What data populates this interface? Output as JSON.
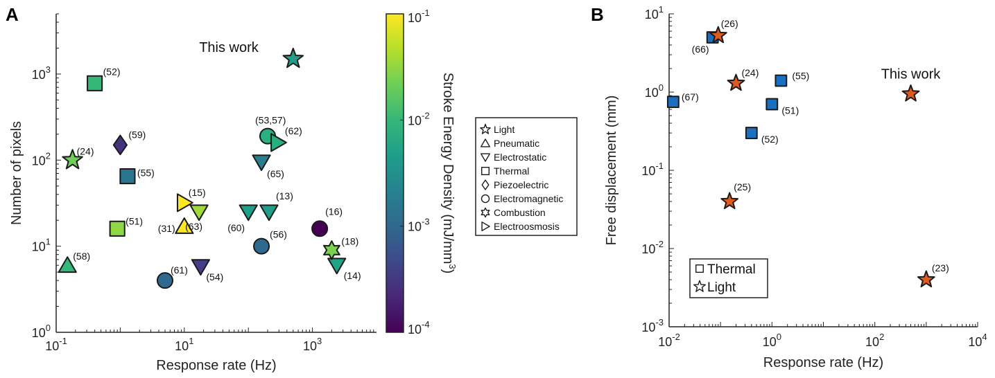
{
  "chart_data": [
    {
      "type": "scatter",
      "panel": "A",
      "xlabel": "Response rate (Hz)",
      "ylabel": "Number of pixels",
      "xscale": "log",
      "yscale": "log",
      "xlim": [
        0.1,
        10000
      ],
      "ylim": [
        1,
        5000
      ],
      "xticks": [
        {
          "v": 0.1,
          "b": "10",
          "e": "-1"
        },
        {
          "v": 10,
          "b": "10",
          "e": "1"
        },
        {
          "v": 1000,
          "b": "10",
          "e": "3"
        }
      ],
      "yticks": [
        {
          "v": 1,
          "b": "10",
          "e": "0"
        },
        {
          "v": 10,
          "b": "10",
          "e": "1"
        },
        {
          "v": 100,
          "b": "10",
          "e": "2"
        },
        {
          "v": 1000,
          "b": "10",
          "e": "3"
        }
      ],
      "colorbar": {
        "label": "Stroke Energy Density (mJ/mm",
        "label_sup": "3",
        "label_end": ")",
        "scale": "log",
        "range": [
          0.0001,
          0.1
        ],
        "ticks": [
          {
            "v": 0.1,
            "b": "10",
            "e": "-1"
          },
          {
            "v": 0.01,
            "b": "10",
            "e": "-2"
          },
          {
            "v": 0.001,
            "b": "10",
            "e": "-3"
          },
          {
            "v": 0.0001,
            "b": "10",
            "e": "-4"
          }
        ],
        "colormap": [
          "#440154",
          "#482878",
          "#3e4989",
          "#31688e",
          "#26828e",
          "#1f9e89",
          "#35b779",
          "#6ece58",
          "#b5de2b",
          "#fde725"
        ]
      },
      "legend": {
        "placement": "right",
        "entries": [
          {
            "label": "Light",
            "marker": "star"
          },
          {
            "label": "Pneumatic",
            "marker": "triangle-up"
          },
          {
            "label": "Electrostatic",
            "marker": "triangle-down"
          },
          {
            "label": "Thermal",
            "marker": "square"
          },
          {
            "label": "Piezoelectric",
            "marker": "diamond"
          },
          {
            "label": "Electromagnetic",
            "marker": "circle"
          },
          {
            "label": "Combustion",
            "marker": "hexagram"
          },
          {
            "label": "Electroosmosis",
            "marker": "triangle-right"
          }
        ]
      },
      "annotation": "This work",
      "points": [
        {
          "x": 0.18,
          "y": 100,
          "marker": "star",
          "color": "#6ece58",
          "label": "(24)"
        },
        {
          "x": 500,
          "y": 1500,
          "marker": "star",
          "color": "#1f9e89",
          "label": ""
        },
        {
          "x": 0.15,
          "y": 6,
          "marker": "triangle-up",
          "color": "#35b779",
          "label": "(58)"
        },
        {
          "x": 10,
          "y": 17,
          "marker": "triangle-up",
          "color": "#fde725",
          "label": "(31)"
        },
        {
          "x": 0.4,
          "y": 780,
          "marker": "square",
          "color": "#35b779",
          "label": "(52)"
        },
        {
          "x": 1.3,
          "y": 65,
          "marker": "square",
          "color": "#2a768e",
          "label": "(55)"
        },
        {
          "x": 0.9,
          "y": 16,
          "marker": "square",
          "color": "#8fd744",
          "label": "(51)"
        },
        {
          "x": 1,
          "y": 150,
          "marker": "diamond",
          "color": "#46337f",
          "label": "(59)"
        },
        {
          "x": 17,
          "y": 25,
          "marker": "triangle-down",
          "color": "#9fda3a",
          "label": "(63)"
        },
        {
          "x": 100,
          "y": 25,
          "marker": "triangle-down",
          "color": "#1f9e89",
          "label": "(60)"
        },
        {
          "x": 210,
          "y": 25,
          "marker": "triangle-down",
          "color": "#1f9e89",
          "label": "(13)"
        },
        {
          "x": 160,
          "y": 95,
          "marker": "triangle-down",
          "color": "#287d8e",
          "label": "(65)"
        },
        {
          "x": 18,
          "y": 5.8,
          "marker": "triangle-down",
          "color": "#433e85",
          "label": "(54)"
        },
        {
          "x": 2400,
          "y": 6,
          "marker": "triangle-down",
          "color": "#20a386",
          "label": "(14)"
        },
        {
          "x": 200,
          "y": 190,
          "marker": "circle",
          "color": "#2ab07f",
          "label": "(53,57)"
        },
        {
          "x": 160,
          "y": 10,
          "marker": "circle",
          "color": "#30698e",
          "label": "(56)"
        },
        {
          "x": 1300,
          "y": 16,
          "marker": "circle",
          "color": "#440154",
          "label": "(16)"
        },
        {
          "x": 5,
          "y": 4,
          "marker": "circle",
          "color": "#31688e",
          "label": "(61)"
        },
        {
          "x": 2000,
          "y": 9,
          "marker": "hexagram",
          "color": "#7ad151",
          "label": "(18)"
        },
        {
          "x": 10,
          "y": 32,
          "marker": "triangle-right",
          "color": "#fde725",
          "label": "(15)"
        },
        {
          "x": 290,
          "y": 160,
          "marker": "triangle-right",
          "color": "#29af7f",
          "label": "(62)"
        }
      ]
    },
    {
      "type": "scatter",
      "panel": "B",
      "xlabel": "Response rate (Hz)",
      "ylabel": "Free displacement (mm)",
      "xscale": "log",
      "yscale": "log",
      "xlim": [
        0.01,
        10000
      ],
      "ylim": [
        0.001,
        10
      ],
      "xticks": [
        {
          "v": 0.01,
          "b": "10",
          "e": "-2"
        },
        {
          "v": 1,
          "b": "10",
          "e": "0"
        },
        {
          "v": 100,
          "b": "10",
          "e": "2"
        },
        {
          "v": 10000,
          "b": "10",
          "e": "4"
        }
      ],
      "yticks": [
        {
          "v": 0.001,
          "b": "10",
          "e": "-3"
        },
        {
          "v": 0.01,
          "b": "10",
          "e": "-2"
        },
        {
          "v": 0.1,
          "b": "10",
          "e": "-1"
        },
        {
          "v": 1,
          "b": "10",
          "e": "0"
        },
        {
          "v": 10,
          "b": "10",
          "e": "1"
        }
      ],
      "legend": {
        "placement": "bottom-left",
        "entries": [
          {
            "label": "Thermal",
            "marker": "square"
          },
          {
            "label": "Light",
            "marker": "star"
          }
        ]
      },
      "annotation": "This work",
      "thermal_color": "#1a6fbf",
      "light_color": "#e05a1e",
      "points": [
        {
          "x": 0.012,
          "y": 0.75,
          "marker": "square",
          "label": "(67)"
        },
        {
          "x": 0.07,
          "y": 5,
          "marker": "square",
          "label": "(66)"
        },
        {
          "x": 0.4,
          "y": 0.3,
          "marker": "square",
          "label": "(52)"
        },
        {
          "x": 1,
          "y": 0.7,
          "marker": "square",
          "label": "(51)"
        },
        {
          "x": 1.5,
          "y": 1.4,
          "marker": "square",
          "label": "(55)"
        },
        {
          "x": 0.09,
          "y": 5.3,
          "marker": "star",
          "label": "(26)"
        },
        {
          "x": 0.2,
          "y": 1.3,
          "marker": "star",
          "label": "(24)"
        },
        {
          "x": 0.15,
          "y": 0.04,
          "marker": "star",
          "label": "(25)"
        },
        {
          "x": 500,
          "y": 0.95,
          "marker": "star",
          "label": ""
        },
        {
          "x": 1000,
          "y": 0.004,
          "marker": "star",
          "label": "(23)"
        }
      ]
    }
  ]
}
